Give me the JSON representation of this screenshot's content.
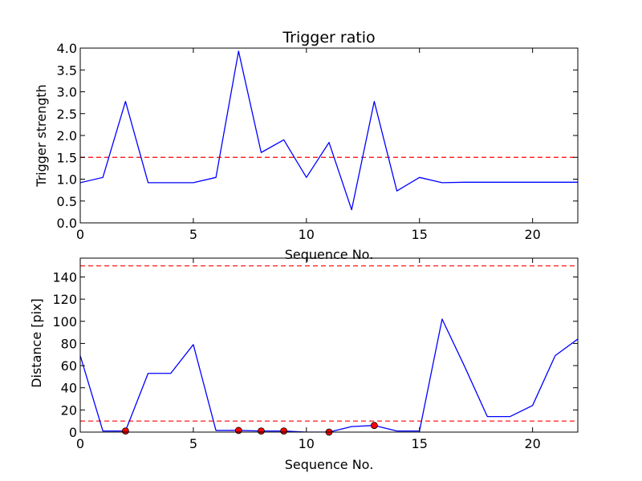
{
  "chart_data": [
    {
      "type": "line",
      "title": "Trigger ratio",
      "xlabel": "Sequence No.",
      "ylabel": "Trigger strength",
      "xlim": [
        0,
        22
      ],
      "ylim": [
        0,
        4.0
      ],
      "xticks": [
        0,
        5,
        10,
        15,
        20
      ],
      "xtick_labels": [
        "0",
        "5",
        "10",
        "15",
        "20"
      ],
      "yticks": [
        0.0,
        0.5,
        1.0,
        1.5,
        2.0,
        2.5,
        3.0,
        3.5,
        4.0
      ],
      "ytick_labels": [
        "0.0",
        "0.5",
        "1.0",
        "1.5",
        "2.0",
        "2.5",
        "3.0",
        "3.5",
        "4.0"
      ],
      "grid": false,
      "series": [
        {
          "color": "#0000ff",
          "x": [
            0,
            1,
            2,
            3,
            4,
            5,
            6,
            7,
            8,
            9,
            10,
            11,
            12,
            13,
            14,
            15,
            16,
            17,
            18,
            19,
            20,
            21,
            22
          ],
          "values": [
            0.92,
            1.04,
            2.78,
            0.92,
            0.92,
            0.92,
            1.04,
            3.93,
            1.61,
            1.9,
            1.04,
            1.84,
            0.3,
            2.78,
            0.73,
            1.04,
            0.92,
            0.93,
            0.93,
            0.93,
            0.93,
            0.93,
            0.93
          ]
        }
      ],
      "hlines": [
        {
          "y": 1.5,
          "color": "#ff0000",
          "style": "dashed"
        }
      ]
    },
    {
      "type": "line",
      "title": "",
      "xlabel": "Sequence No.",
      "ylabel": "Distance [pix]",
      "xlim": [
        0,
        22
      ],
      "ylim": [
        0,
        157
      ],
      "xticks": [
        0,
        5,
        10,
        15,
        20
      ],
      "xtick_labels": [
        "0",
        "5",
        "10",
        "15",
        "20"
      ],
      "yticks": [
        0,
        20,
        40,
        60,
        80,
        100,
        120,
        140
      ],
      "ytick_labels": [
        "0",
        "20",
        "40",
        "60",
        "80",
        "100",
        "120",
        "140"
      ],
      "grid": false,
      "series": [
        {
          "color": "#0000ff",
          "x": [
            0,
            1,
            2,
            3,
            4,
            5,
            6,
            7,
            8,
            9,
            10,
            11,
            12,
            13,
            14,
            15,
            16,
            17,
            18,
            19,
            20,
            21,
            22
          ],
          "values": [
            69,
            1,
            1,
            53,
            53,
            79,
            1.5,
            1.5,
            1,
            1,
            0,
            0,
            5,
            6,
            1,
            1,
            102,
            59,
            14,
            14,
            24,
            69,
            84
          ]
        }
      ],
      "markers": {
        "color": "#ff0000",
        "x": [
          2,
          7,
          8,
          9,
          11,
          13
        ],
        "values": [
          1,
          1.5,
          1,
          1,
          0,
          6
        ]
      },
      "hlines": [
        {
          "y": 10,
          "color": "#ff0000",
          "style": "dashed"
        },
        {
          "y": 150,
          "color": "#ff0000",
          "style": "dashed"
        }
      ]
    }
  ]
}
